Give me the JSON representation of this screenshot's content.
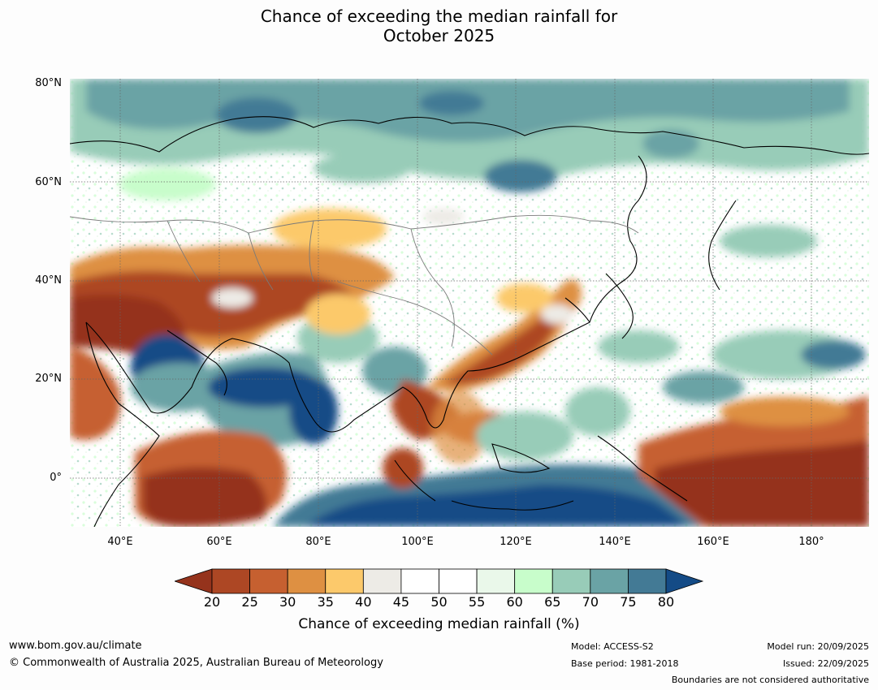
{
  "title": {
    "line1": "Chance of exceeding the median rainfall for",
    "line2": "October 2025"
  },
  "map": {
    "lat_labels": [
      "80°N",
      "60°N",
      "40°N",
      "20°N",
      "0°"
    ],
    "lon_labels": [
      "40°E",
      "60°E",
      "80°E",
      "100°E",
      "120°E",
      "140°E",
      "160°E",
      "180°"
    ]
  },
  "colorbar": {
    "label": "Chance of exceeding median rainfall (%)",
    "ticks": [
      "20",
      "25",
      "30",
      "35",
      "40",
      "45",
      "50",
      "55",
      "60",
      "65",
      "70",
      "75",
      "80"
    ],
    "colors": [
      "#ad4724",
      "#c66030",
      "#de9042",
      "#fcc96b",
      "#edebe6",
      "#ffffff",
      "#ffffff",
      "#eaf8ea",
      "#c8fdcb",
      "#98ccb8",
      "#6aa3a5",
      "#437a95"
    ],
    "low_extend_color": "#95331c",
    "high_extend_color": "#144b86"
  },
  "footer": {
    "website": "www.bom.gov.au/climate",
    "copyright": "© Commonwealth of Australia 2025, Australian Bureau of Meteorology",
    "model": "Model: ACCESS-S2",
    "base_period": "Base period: 1981-2018",
    "model_run": "Model run: 20/09/2025",
    "issued": "Issued: 22/09/2025",
    "disclaimer": "Boundaries are not considered authoritative"
  }
}
